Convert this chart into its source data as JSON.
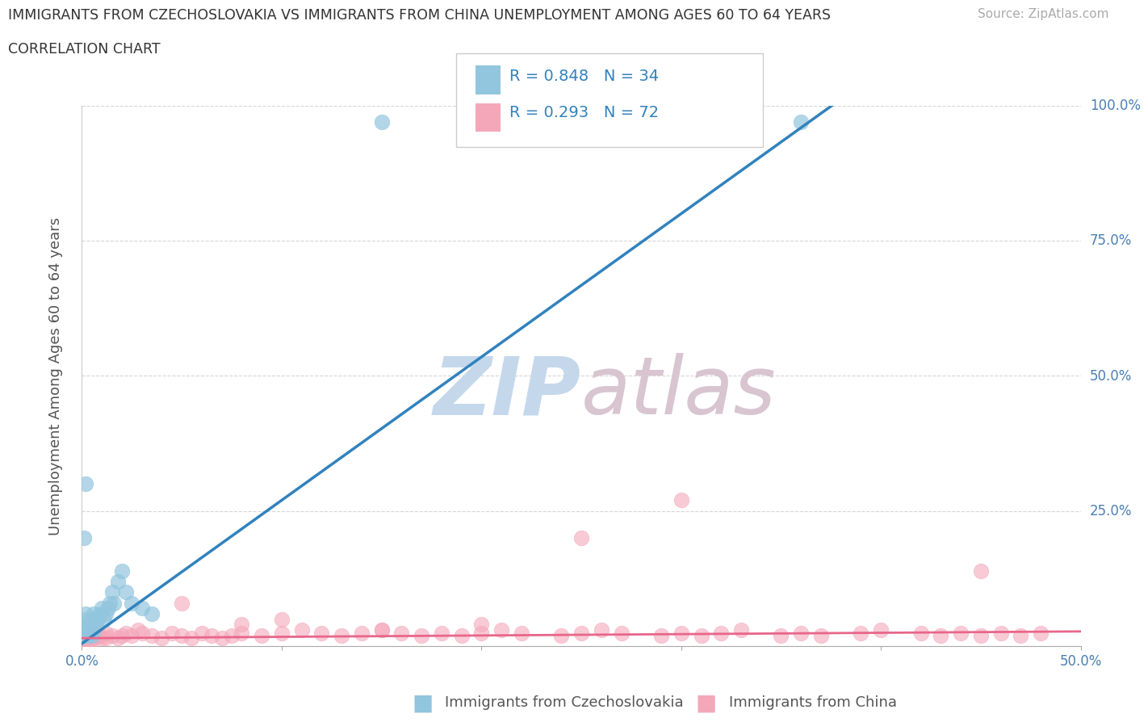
{
  "title_line1": "IMMIGRANTS FROM CZECHOSLOVAKIA VS IMMIGRANTS FROM CHINA UNEMPLOYMENT AMONG AGES 60 TO 64 YEARS",
  "title_line2": "CORRELATION CHART",
  "source_text": "Source: ZipAtlas.com",
  "ylabel": "Unemployment Among Ages 60 to 64 years",
  "xlabel_czechoslovakia": "Immigrants from Czechoslovakia",
  "xlabel_china": "Immigrants from China",
  "xlim": [
    0.0,
    0.5
  ],
  "ylim": [
    0.0,
    1.0
  ],
  "xticks": [
    0.0,
    0.1,
    0.2,
    0.3,
    0.4,
    0.5
  ],
  "xticklabels_ends": [
    "0.0%",
    "50.0%"
  ],
  "yticks": [
    0.0,
    0.25,
    0.5,
    0.75,
    1.0
  ],
  "yticklabels_right": [
    "",
    "25.0%",
    "50.0%",
    "75.0%",
    "100.0%"
  ],
  "color_czech": "#92c5de",
  "color_china": "#f4a7b9",
  "color_czech_line": "#3182bd",
  "color_china_line": "#e8668a",
  "legend_text_color": "#3182bd",
  "watermark": "ZIPatlas",
  "watermark_color": "#d0e4f0",
  "czech_x": [
    0.001,
    0.001,
    0.001,
    0.002,
    0.002,
    0.002,
    0.003,
    0.003,
    0.004,
    0.004,
    0.005,
    0.005,
    0.006,
    0.006,
    0.007,
    0.008,
    0.009,
    0.01,
    0.011,
    0.012,
    0.013,
    0.014,
    0.015,
    0.016,
    0.018,
    0.02,
    0.022,
    0.025,
    0.03,
    0.035,
    0.001,
    0.002,
    0.15,
    0.36
  ],
  "czech_y": [
    0.02,
    0.03,
    0.04,
    0.02,
    0.05,
    0.06,
    0.02,
    0.03,
    0.03,
    0.04,
    0.02,
    0.05,
    0.03,
    0.06,
    0.04,
    0.05,
    0.06,
    0.07,
    0.05,
    0.06,
    0.07,
    0.08,
    0.1,
    0.08,
    0.12,
    0.14,
    0.1,
    0.08,
    0.07,
    0.06,
    0.2,
    0.3,
    0.97,
    0.97
  ],
  "china_x": [
    0.001,
    0.002,
    0.003,
    0.005,
    0.006,
    0.008,
    0.01,
    0.012,
    0.015,
    0.018,
    0.02,
    0.022,
    0.025,
    0.028,
    0.03,
    0.035,
    0.04,
    0.045,
    0.05,
    0.055,
    0.06,
    0.065,
    0.07,
    0.075,
    0.08,
    0.09,
    0.1,
    0.11,
    0.12,
    0.13,
    0.14,
    0.15,
    0.16,
    0.17,
    0.18,
    0.19,
    0.2,
    0.21,
    0.22,
    0.24,
    0.25,
    0.26,
    0.27,
    0.29,
    0.3,
    0.31,
    0.32,
    0.33,
    0.35,
    0.36,
    0.37,
    0.39,
    0.4,
    0.42,
    0.43,
    0.44,
    0.45,
    0.46,
    0.47,
    0.48,
    0.003,
    0.006,
    0.009,
    0.012,
    0.05,
    0.08,
    0.1,
    0.15,
    0.2,
    0.25,
    0.3,
    0.45
  ],
  "china_y": [
    0.01,
    0.015,
    0.02,
    0.01,
    0.025,
    0.02,
    0.015,
    0.025,
    0.02,
    0.015,
    0.02,
    0.025,
    0.02,
    0.03,
    0.025,
    0.02,
    0.015,
    0.025,
    0.02,
    0.015,
    0.025,
    0.02,
    0.015,
    0.02,
    0.025,
    0.02,
    0.025,
    0.03,
    0.025,
    0.02,
    0.025,
    0.03,
    0.025,
    0.02,
    0.025,
    0.02,
    0.025,
    0.03,
    0.025,
    0.02,
    0.025,
    0.03,
    0.025,
    0.02,
    0.025,
    0.02,
    0.025,
    0.03,
    0.02,
    0.025,
    0.02,
    0.025,
    0.03,
    0.025,
    0.02,
    0.025,
    0.02,
    0.025,
    0.02,
    0.025,
    0.01,
    0.015,
    0.02,
    0.015,
    0.08,
    0.04,
    0.05,
    0.03,
    0.04,
    0.2,
    0.27,
    0.14
  ],
  "regression_czech_slope": 2.65,
  "regression_czech_intercept": 0.005,
  "regression_china_slope": 0.025,
  "regression_china_intercept": 0.015
}
